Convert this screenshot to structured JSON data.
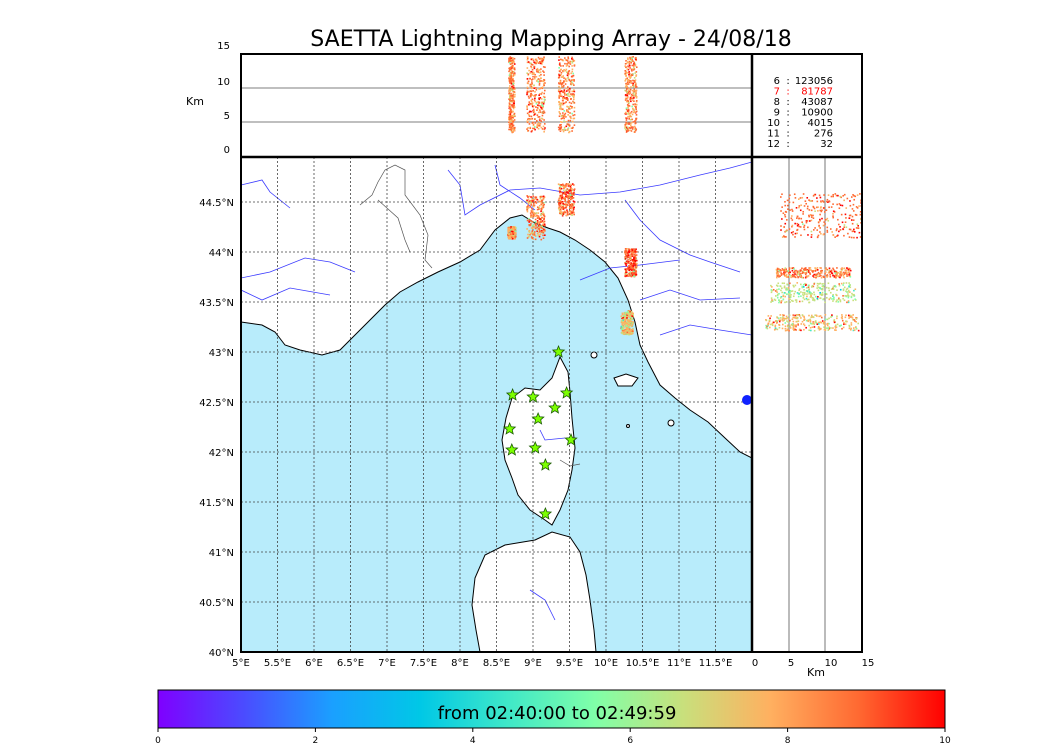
{
  "title": "SAETTA Lightning Mapping Array - 24/08/18",
  "colors": {
    "sea": "#b8ecfb",
    "land": "#ffffff",
    "coast": "#000000",
    "border": "#555555",
    "river": "#3b3bff",
    "station": "#7cff00",
    "highlight_count": "#ff0000",
    "grid": "#555555"
  },
  "altitude_panel": {
    "ylabel": "Km",
    "yticks": [
      "0",
      "5",
      "10",
      "15"
    ]
  },
  "side_panel": {
    "xlabel": "Km",
    "xticks": [
      "0",
      "5",
      "10",
      "15"
    ]
  },
  "stations_table": [
    {
      "n": "6",
      "sep": ":",
      "count": "123056",
      "highlight": false
    },
    {
      "n": "7",
      "sep": ":",
      "count": "81787",
      "highlight": true
    },
    {
      "n": "8",
      "sep": ":",
      "count": "43087",
      "highlight": false
    },
    {
      "n": "9",
      "sep": ":",
      "count": "10900",
      "highlight": false
    },
    {
      "n": "10",
      "sep": ":",
      "count": "4015",
      "highlight": false
    },
    {
      "n": "11",
      "sep": ":",
      "count": "276",
      "highlight": false
    },
    {
      "n": "12",
      "sep": ":",
      "count": "32",
      "highlight": false
    }
  ],
  "map": {
    "lon_ticks": [
      "5°E",
      "5.5°E",
      "6°E",
      "6.5°E",
      "7°E",
      "7.5°E",
      "8°E",
      "8.5°E",
      "9°E",
      "9.5°E",
      "10°E",
      "10.5°E",
      "11°E",
      "11.5°E"
    ],
    "lat_ticks": [
      "40°N",
      "40.5°N",
      "41°N",
      "41.5°N",
      "42°N",
      "42.5°N",
      "43°N",
      "43.5°N",
      "44°N",
      "44.5°N"
    ],
    "lon_range": [
      5,
      12
    ],
    "lat_range": [
      40,
      44.95
    ]
  },
  "colorbar": {
    "label": "from 02:40:00 to 02:49:59",
    "ticks": [
      "0",
      "2",
      "4",
      "6",
      "8",
      "10"
    ],
    "range": [
      0,
      10
    ],
    "gradient": [
      "#7f00ff",
      "#4a4dff",
      "#1aa0ff",
      "#00c8e6",
      "#3fe8c8",
      "#80ffa8",
      "#c8e07c",
      "#ffb060",
      "#ff6a32",
      "#ff0000"
    ]
  },
  "chart_data": {
    "type": "scatter",
    "title": "SAETTA Lightning Mapping Array - 24/08/18",
    "xlabel": "",
    "ylabel": "",
    "xlim": [
      5,
      12
    ],
    "ylim": [
      40,
      44.95
    ],
    "stations": [
      {
        "lon": 9.35,
        "lat": 43.0
      },
      {
        "lon": 8.72,
        "lat": 42.57
      },
      {
        "lon": 9.0,
        "lat": 42.55
      },
      {
        "lon": 9.46,
        "lat": 42.59
      },
      {
        "lon": 9.3,
        "lat": 42.44
      },
      {
        "lon": 9.07,
        "lat": 42.33
      },
      {
        "lon": 8.68,
        "lat": 42.23
      },
      {
        "lon": 9.52,
        "lat": 42.12
      },
      {
        "lon": 8.71,
        "lat": 42.02
      },
      {
        "lon": 9.03,
        "lat": 42.04
      },
      {
        "lon": 9.17,
        "lat": 41.87
      },
      {
        "lon": 9.17,
        "lat": 41.38
      }
    ],
    "lightning_clusters": [
      {
        "lon": 9.03,
        "lat": 44.35,
        "time_min": 8.5
      },
      {
        "lon": 9.45,
        "lat": 44.53,
        "time_min": 8.8
      },
      {
        "lon": 10.33,
        "lat": 43.9,
        "time_min": 9.0
      },
      {
        "lon": 10.28,
        "lat": 43.3,
        "time_min": 7.5
      },
      {
        "lon": 8.7,
        "lat": 44.2,
        "time_min": 8.0
      }
    ]
  }
}
